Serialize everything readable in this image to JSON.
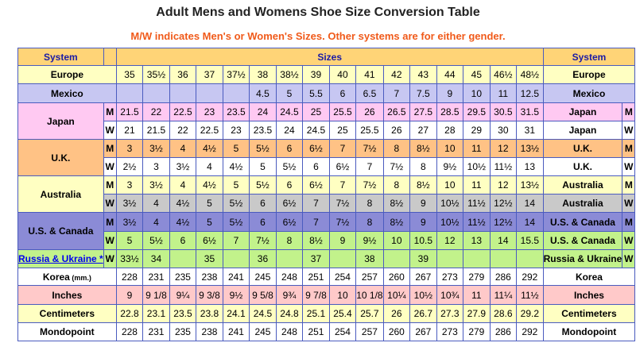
{
  "title": "Adult Mens and Womens Shoe Size Conversion Table",
  "subtitle": "M/W indicates Men's or Women's Sizes. Other systems are for either gender.",
  "header": {
    "system_left": "System",
    "sizes": "Sizes",
    "system_right": "System"
  },
  "rows": [
    {
      "id": "europe",
      "label": "Europe",
      "mw": "",
      "bg": "#ffffc2",
      "values": [
        "35",
        "35½",
        "36",
        "37",
        "37½",
        "38",
        "38½",
        "39",
        "40",
        "41",
        "42",
        "43",
        "44",
        "45",
        "46½",
        "48½"
      ]
    },
    {
      "id": "mexico",
      "label": "Mexico",
      "mw": "",
      "bg": "#c7c7f2",
      "values": [
        "",
        "",
        "",
        "",
        "",
        "4.5",
        "5",
        "5.5",
        "6",
        "6.5",
        "7",
        "7.5",
        "9",
        "10",
        "11",
        "12.5"
      ]
    },
    {
      "id": "japan-m",
      "label": "Japan",
      "mw": "M",
      "bg": "#ffc9f2",
      "values": [
        "21.5",
        "22",
        "22.5",
        "23",
        "23.5",
        "24",
        "24.5",
        "25",
        "25.5",
        "26",
        "26.5",
        "27.5",
        "28.5",
        "29.5",
        "30.5",
        "31.5"
      ]
    },
    {
      "id": "japan-w",
      "label": "Japan",
      "mw": "W",
      "bg": "#ffffff",
      "values": [
        "21",
        "21.5",
        "22",
        "22.5",
        "23",
        "23.5",
        "24",
        "24.5",
        "25",
        "25.5",
        "26",
        "27",
        "28",
        "29",
        "30",
        "31"
      ]
    },
    {
      "id": "uk-m",
      "label": "U.K.",
      "mw": "M",
      "bg": "#ffc285",
      "values": [
        "3",
        "3½",
        "4",
        "4½",
        "5",
        "5½",
        "6",
        "6½",
        "7",
        "7½",
        "8",
        "8½",
        "10",
        "11",
        "12",
        "13½"
      ]
    },
    {
      "id": "uk-w",
      "label": "U.K.",
      "mw": "W",
      "bg": "#ffffff",
      "values": [
        "2½",
        "3",
        "3½",
        "4",
        "4½",
        "5",
        "5½",
        "6",
        "6½",
        "7",
        "7½",
        "8",
        "9½",
        "10½",
        "11½",
        "13"
      ]
    },
    {
      "id": "aus-m",
      "label": "Australia",
      "mw": "M",
      "bg": "#ffffc2",
      "values": [
        "3",
        "3½",
        "4",
        "4½",
        "5",
        "5½",
        "6",
        "6½",
        "7",
        "7½",
        "8",
        "8½",
        "10",
        "11",
        "12",
        "13½"
      ]
    },
    {
      "id": "aus-w",
      "label": "Australia",
      "mw": "W",
      "bg": "#c9c9c9",
      "values": [
        "3½",
        "4",
        "4½",
        "5",
        "5½",
        "6",
        "6½",
        "7",
        "7½",
        "8",
        "8½",
        "9",
        "10½",
        "11½",
        "12½",
        "14"
      ]
    },
    {
      "id": "us-m",
      "label": "U.S. & Canada",
      "mw": "M",
      "bg": "#8b8bd6",
      "values": [
        "3½",
        "4",
        "4½",
        "5",
        "5½",
        "6",
        "6½",
        "7",
        "7½",
        "8",
        "8½",
        "9",
        "10½",
        "11½",
        "12½",
        "14"
      ]
    },
    {
      "id": "us-w",
      "label": "U.S. & Canada",
      "mw": "W",
      "bg": "#c2f28b",
      "values": [
        "5",
        "5½",
        "6",
        "6½",
        "7",
        "7½",
        "8",
        "8½",
        "9",
        "9½",
        "10",
        "10.5",
        "12",
        "13",
        "14",
        "15.5"
      ]
    },
    {
      "id": "russia",
      "label": "Russia & Ukraine *",
      "label_right": "Russia & Ukraine",
      "mw": "W",
      "bg": "#c2f28b",
      "values": [
        "33½",
        "34",
        "",
        "35",
        "",
        "36",
        "",
        "37",
        "",
        "38",
        "",
        "39",
        "",
        "",
        "",
        ""
      ]
    },
    {
      "id": "korea",
      "label": "Korea",
      "label_unit": "(mm.)",
      "mw": "",
      "bg": "#ffffff",
      "values": [
        "228",
        "231",
        "235",
        "238",
        "241",
        "245",
        "248",
        "251",
        "254",
        "257",
        "260",
        "267",
        "273",
        "279",
        "286",
        "292"
      ]
    },
    {
      "id": "inches",
      "label": "Inches",
      "mw": "",
      "bg": "#ffc9c9",
      "values": [
        "9",
        "9 1/8",
        "9¼",
        "9 3/8",
        "9½",
        "9 5/8",
        "9¾",
        "9 7/8",
        "10",
        "10 1/8",
        "10¼",
        "10½",
        "10¾",
        "11",
        "11¼",
        "11½"
      ]
    },
    {
      "id": "cm",
      "label": "Centimeters",
      "mw": "",
      "bg": "#ffffc2",
      "values": [
        "22.8",
        "23.1",
        "23.5",
        "23.8",
        "24.1",
        "24.5",
        "24.8",
        "25.1",
        "25.4",
        "25.7",
        "26",
        "26.7",
        "27.3",
        "27.9",
        "28.6",
        "29.2"
      ]
    },
    {
      "id": "mondo",
      "label": "Mondopoint",
      "mw": "",
      "bg": "#ffffff",
      "values": [
        "228",
        "231",
        "235",
        "238",
        "241",
        "245",
        "248",
        "251",
        "254",
        "257",
        "260",
        "267",
        "273",
        "279",
        "286",
        "292"
      ]
    }
  ],
  "colors": {
    "header_bg": "#ffd477",
    "header_text": "#1a1aa6",
    "subtitle": "#f05a1a",
    "border": "#4a5bbf"
  }
}
